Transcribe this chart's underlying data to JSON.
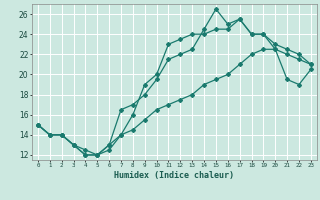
{
  "xlabel": "Humidex (Indice chaleur)",
  "bg_color": "#cce8e0",
  "grid_color": "#b0d8d0",
  "line_color": "#1a7a6e",
  "xlim": [
    -0.5,
    23.5
  ],
  "ylim": [
    11.5,
    27.0
  ],
  "xticks": [
    0,
    1,
    2,
    3,
    4,
    5,
    6,
    7,
    8,
    9,
    10,
    11,
    12,
    13,
    14,
    15,
    16,
    17,
    18,
    19,
    20,
    21,
    22,
    23
  ],
  "yticks": [
    12,
    14,
    16,
    18,
    20,
    22,
    24,
    26
  ],
  "line1_x": [
    0,
    1,
    2,
    3,
    4,
    5,
    6,
    7,
    8,
    9,
    10,
    11,
    12,
    13,
    14,
    15,
    16,
    17,
    18,
    19,
    20,
    21,
    22,
    23
  ],
  "line1_y": [
    15.0,
    14.0,
    14.0,
    13.0,
    12.5,
    12.0,
    13.0,
    16.5,
    17.0,
    18.0,
    19.5,
    21.5,
    22.0,
    22.5,
    24.5,
    26.5,
    25.0,
    25.5,
    24.0,
    24.0,
    23.0,
    22.5,
    22.0,
    21.0
  ],
  "line2_x": [
    0,
    1,
    2,
    3,
    4,
    5,
    6,
    7,
    8,
    9,
    10,
    11,
    12,
    13,
    14,
    15,
    16,
    17,
    18,
    19,
    20,
    21,
    22,
    23
  ],
  "line2_y": [
    15.0,
    14.0,
    14.0,
    13.0,
    12.0,
    12.0,
    13.0,
    14.0,
    16.0,
    19.0,
    20.0,
    23.0,
    23.5,
    24.0,
    24.0,
    24.5,
    24.5,
    25.5,
    24.0,
    24.0,
    22.5,
    19.5,
    19.0,
    20.5
  ],
  "line3_x": [
    0,
    1,
    2,
    3,
    4,
    5,
    6,
    7,
    8,
    9,
    10,
    11,
    12,
    13,
    14,
    15,
    16,
    17,
    18,
    19,
    20,
    21,
    22,
    23
  ],
  "line3_y": [
    15.0,
    14.0,
    14.0,
    13.0,
    12.0,
    12.0,
    12.5,
    14.0,
    14.5,
    15.5,
    16.5,
    17.0,
    17.5,
    18.0,
    19.0,
    19.5,
    20.0,
    21.0,
    22.0,
    22.5,
    22.5,
    22.0,
    21.5,
    21.0
  ]
}
